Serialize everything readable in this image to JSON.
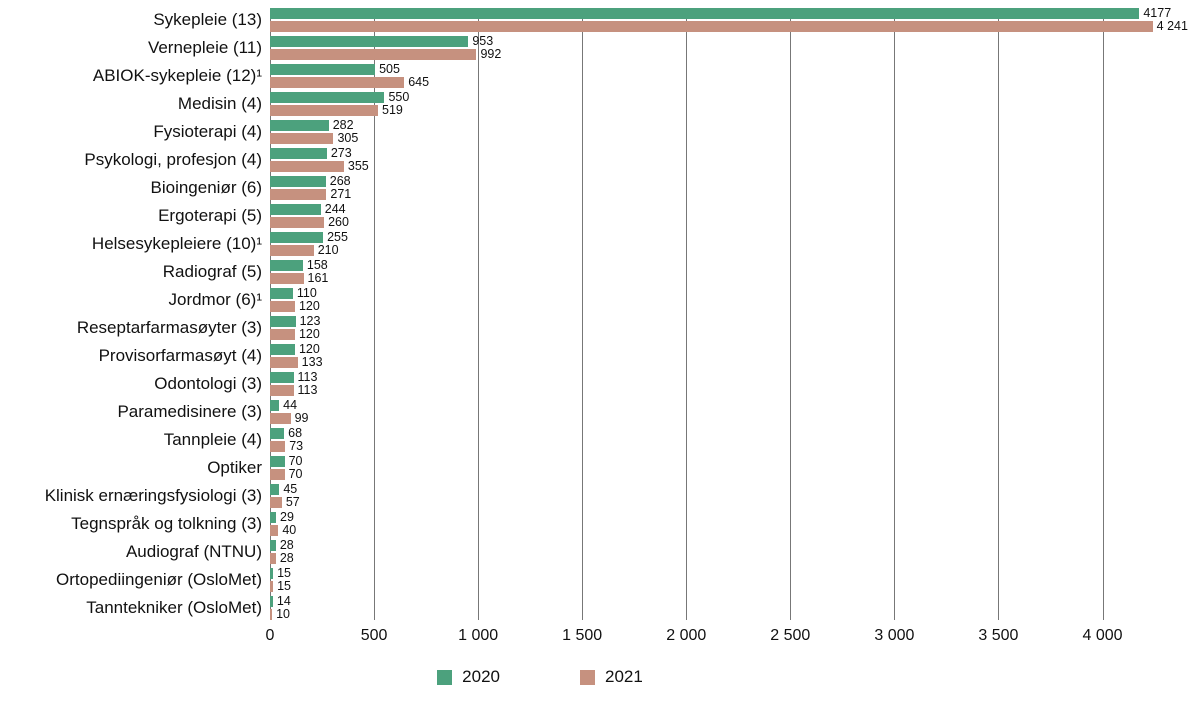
{
  "chart_data": {
    "type": "bar",
    "orientation": "horizontal",
    "title": "",
    "xlabel": "",
    "ylabel": "",
    "grid": true,
    "legend_position": "bottom",
    "xlim": [
      0,
      4430
    ],
    "xticks": [
      0,
      500,
      1000,
      1500,
      2000,
      2500,
      3000,
      3500,
      4000
    ],
    "xtick_labels": [
      "0",
      "500",
      "1 000",
      "1 500",
      "2 000",
      "2 500",
      "3 000",
      "3 500",
      "4 000"
    ],
    "categories": [
      "Sykepleie (13)",
      "Vernepleie (11)",
      "ABIOK-sykepleie (12)¹",
      "Medisin (4)",
      "Fysioterapi (4)",
      "Psykologi, profesjon (4)",
      "Bioingeniør (6)",
      "Ergoterapi (5)",
      "Helsesykepleiere (10)¹",
      "Radiograf (5)",
      "Jordmor (6)¹",
      "Reseptarfarmasøyter (3)",
      "Provisorfarmasøyt (4)",
      "Odontologi (3)",
      "Paramedisinere (3)",
      "Tannpleie (4)",
      "Optiker",
      "Klinisk ernæringsfysiologi (3)",
      "Tegnspråk og tolkning (3)",
      "Audiograf (NTNU)",
      "Ortopediingeniør (OsloMet)",
      "Tanntekniker (OsloMet)"
    ],
    "series": [
      {
        "name": "2020",
        "color": "#4ca17d",
        "values": [
          4177,
          953,
          505,
          550,
          282,
          273,
          268,
          244,
          255,
          158,
          110,
          123,
          120,
          113,
          44,
          68,
          70,
          45,
          29,
          28,
          15,
          14
        ],
        "labels": [
          "4177",
          "953",
          "505",
          "550",
          "282",
          "273",
          "268",
          "244",
          "255",
          "158",
          "110",
          "123",
          "120",
          "113",
          "44",
          "68",
          "70",
          "45",
          "29",
          "28",
          "15",
          "14"
        ]
      },
      {
        "name": "2021",
        "color": "#c6917f",
        "values": [
          4241,
          992,
          645,
          519,
          305,
          355,
          271,
          260,
          210,
          161,
          120,
          120,
          133,
          113,
          99,
          73,
          70,
          57,
          40,
          28,
          15,
          10
        ],
        "labels": [
          "4 241",
          "992",
          "645",
          "519",
          "305",
          "355",
          "271",
          "260",
          "210",
          "161",
          "120",
          "120",
          "133",
          "113",
          "99",
          "73",
          "70",
          "57",
          "40",
          "28",
          "15",
          "10"
        ]
      }
    ]
  }
}
